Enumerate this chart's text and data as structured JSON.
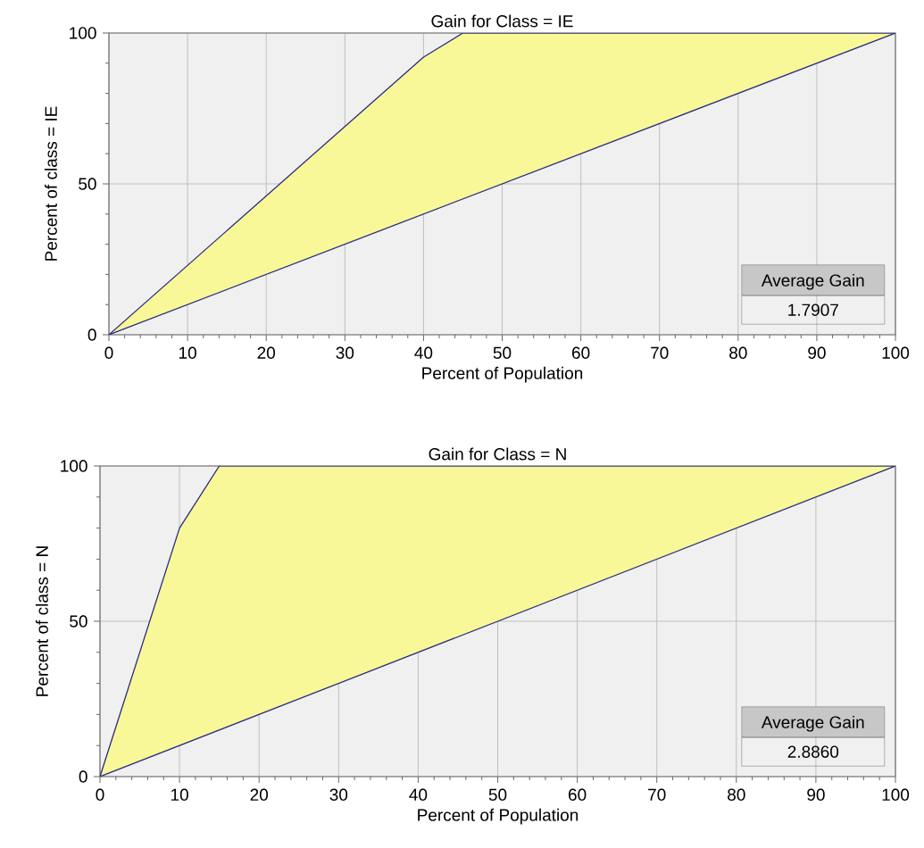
{
  "chart_data": [
    {
      "type": "line",
      "title": "Gain for Class = IE",
      "xlabel": "Percent of Population",
      "ylabel": "Percent of class = IE",
      "xlim": [
        0,
        100
      ],
      "ylim": [
        0,
        100
      ],
      "xticks": [
        0,
        10,
        20,
        30,
        40,
        50,
        60,
        70,
        80,
        90,
        100
      ],
      "yticks": [
        0,
        50,
        100
      ],
      "grid": true,
      "series": [
        {
          "color": "#2b2b80",
          "x": [
            0,
            40,
            45,
            100
          ],
          "values": [
            0,
            92,
            100,
            100
          ],
          "lower": [
            0,
            40,
            45,
            100
          ],
          "upper": [
            0,
            92,
            100,
            100
          ]
        },
        {
          "color": "#2b2b80",
          "x": [
            0,
            100
          ],
          "values": [
            0,
            100
          ]
        }
      ],
      "annotations": [
        "Average Gain",
        "1.7907"
      ]
    },
    {
      "type": "line",
      "title": "Gain for Class = N",
      "xlabel": "Percent of Population",
      "ylabel": "Percent of class = N",
      "xlim": [
        0,
        100
      ],
      "ylim": [
        0,
        100
      ],
      "xticks": [
        0,
        10,
        20,
        30,
        40,
        50,
        60,
        70,
        80,
        90,
        100
      ],
      "yticks": [
        0,
        50,
        100
      ],
      "grid": true,
      "series": [
        {
          "color": "#2b2b80",
          "x": [
            0,
            10,
            15,
            100
          ],
          "values": [
            0,
            80,
            100,
            100
          ],
          "lower": [
            0,
            10,
            15,
            100
          ],
          "upper": [
            0,
            80,
            100,
            100
          ]
        },
        {
          "color": "#2b2b80",
          "x": [
            0,
            100
          ],
          "values": [
            0,
            100
          ]
        }
      ],
      "annotations": [
        "Average Gain",
        "2.8860"
      ]
    }
  ]
}
